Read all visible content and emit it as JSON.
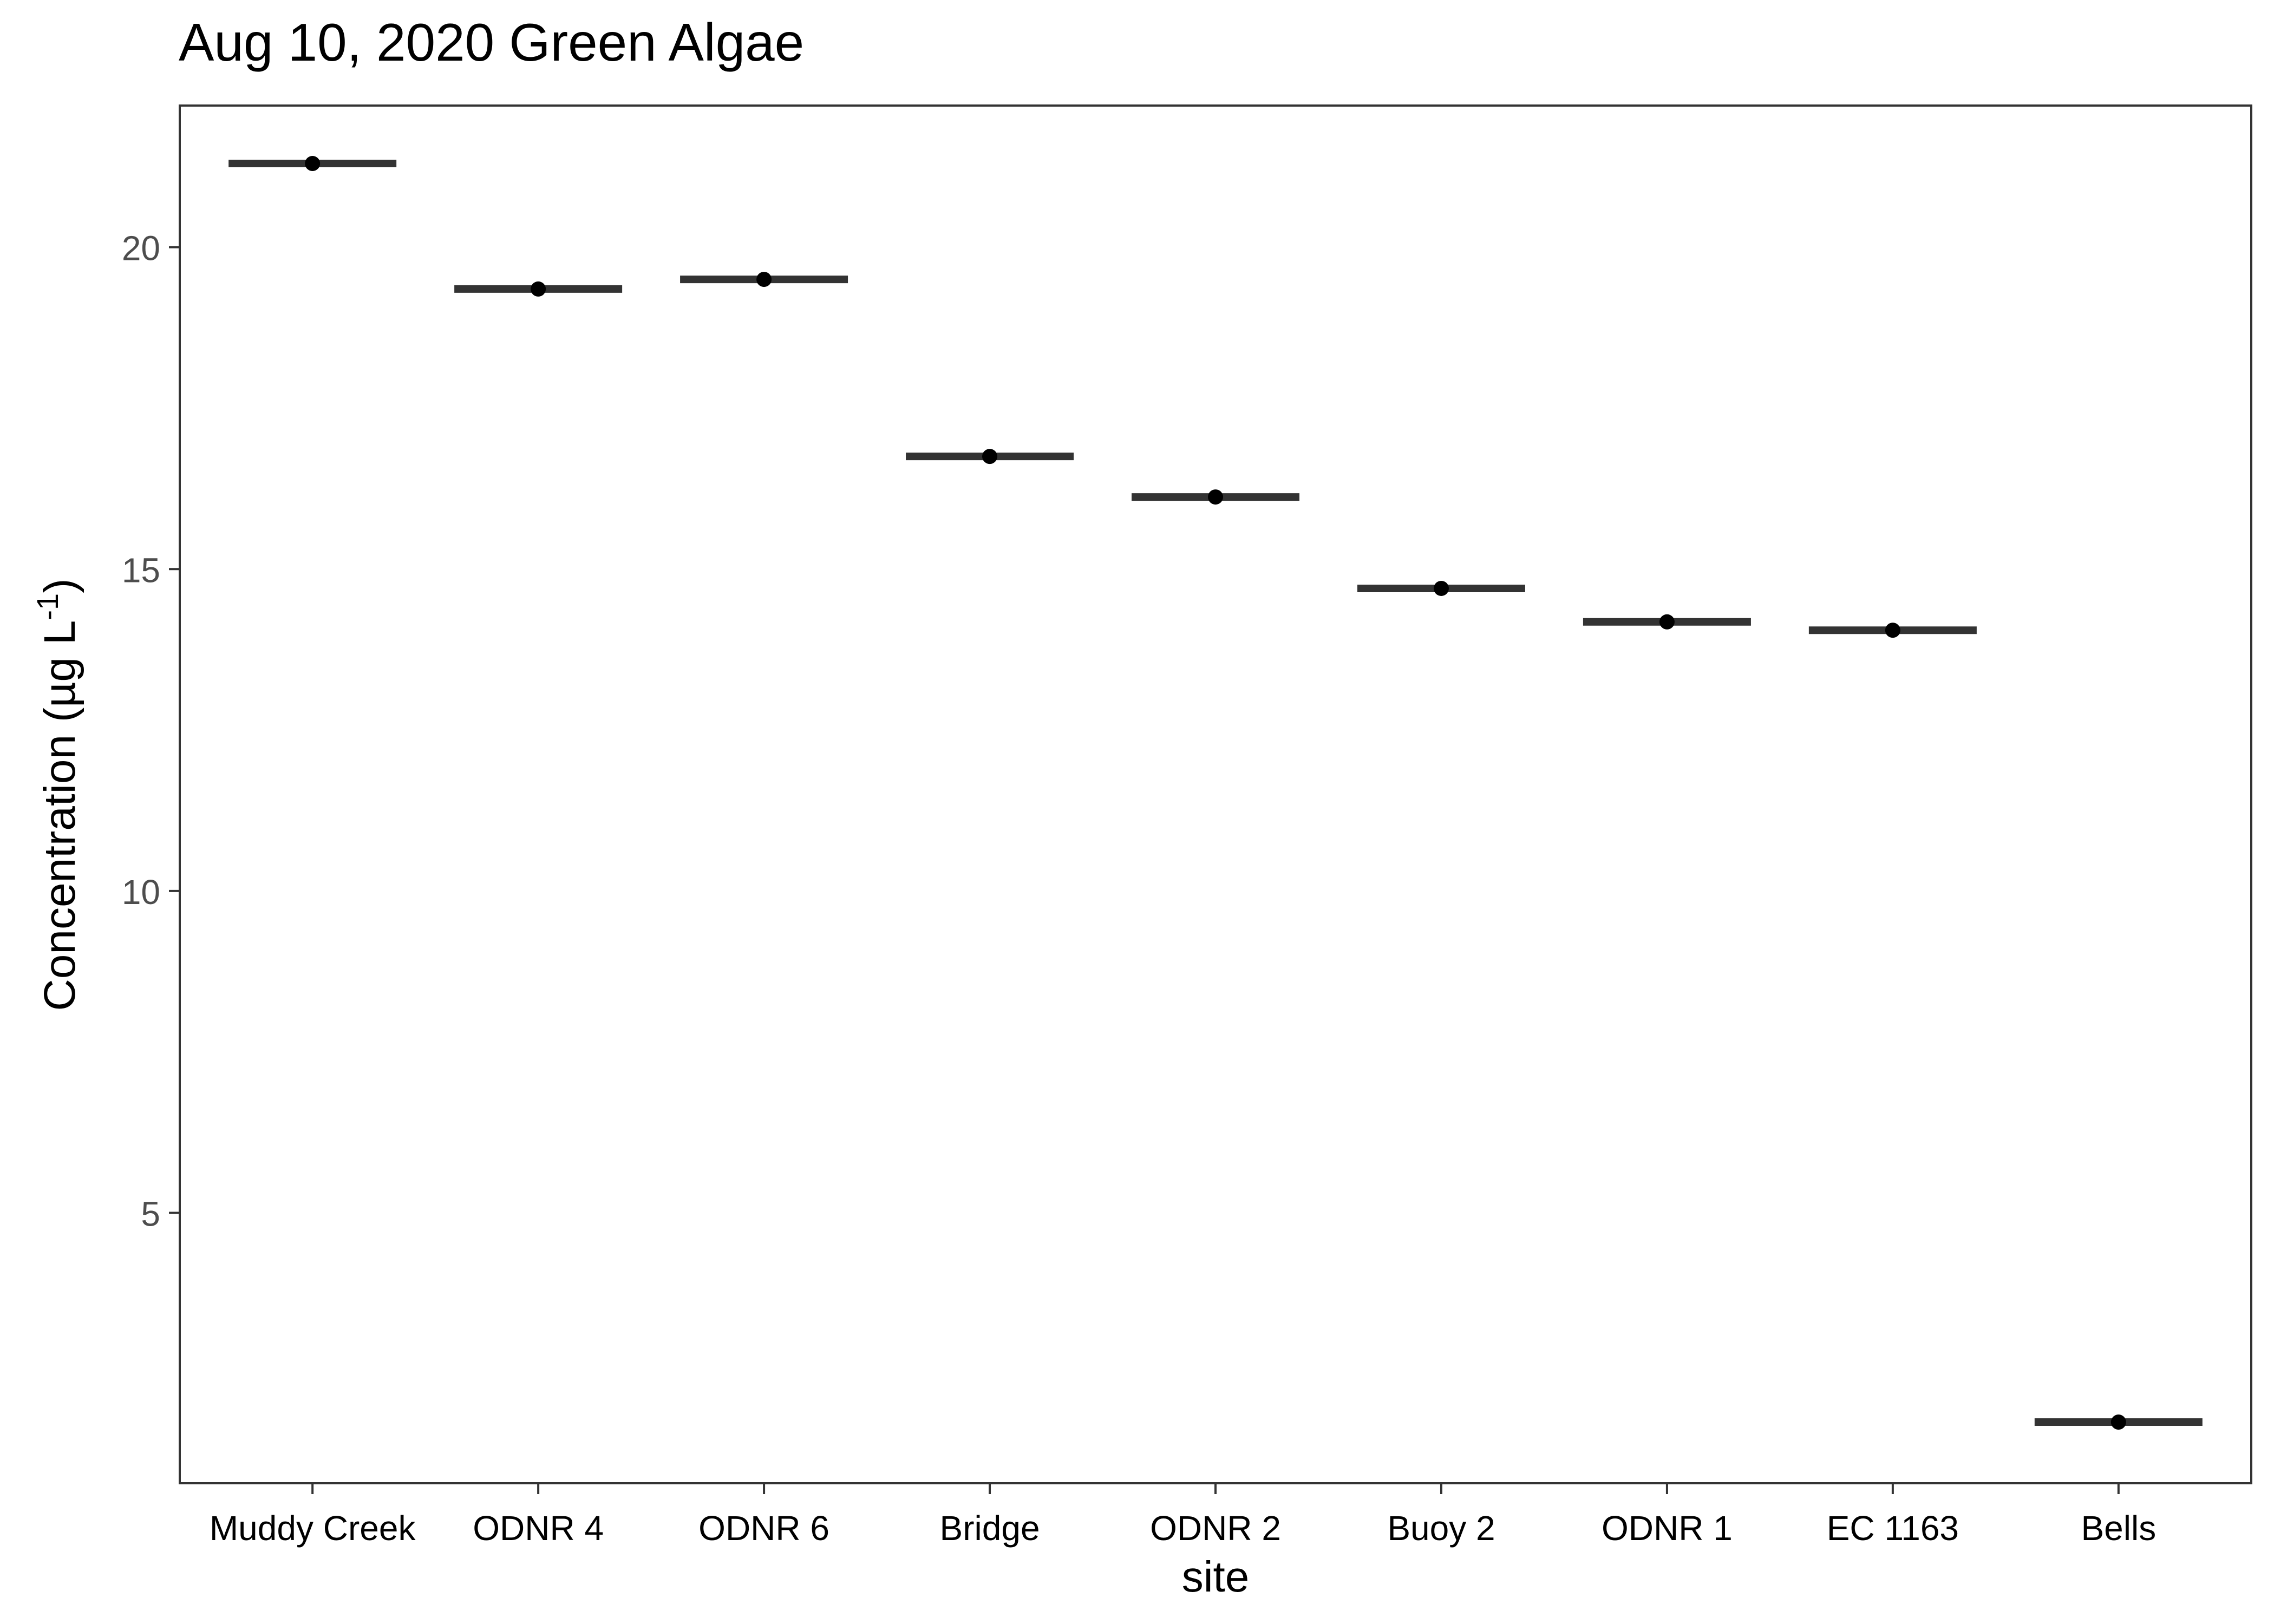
{
  "chart_data": {
    "type": "scatter",
    "title": "Aug 10, 2020 Green Algae",
    "xlabel": "site",
    "ylabel": {
      "main": "Concentration (µg L",
      "superscript": "-1",
      "close": ")"
    },
    "categories": [
      "Muddy Creek",
      "ODNR 4",
      "ODNR 6",
      "Bridge",
      "ODNR 2",
      "Buoy 2",
      "ODNR 1",
      "EC 1163",
      "Bells"
    ],
    "values": [
      21.3,
      19.35,
      19.5,
      16.75,
      16.12,
      14.7,
      14.18,
      14.05,
      1.75
    ],
    "yticks": [
      5,
      10,
      15,
      20
    ],
    "ylim": [
      0.8,
      22.2
    ],
    "grid": false,
    "legend": "none",
    "colors": {
      "point": "#000000",
      "bar": "#333333",
      "axis": "#333333",
      "tick_label": "#4d4d4d",
      "text": "#000000"
    }
  }
}
